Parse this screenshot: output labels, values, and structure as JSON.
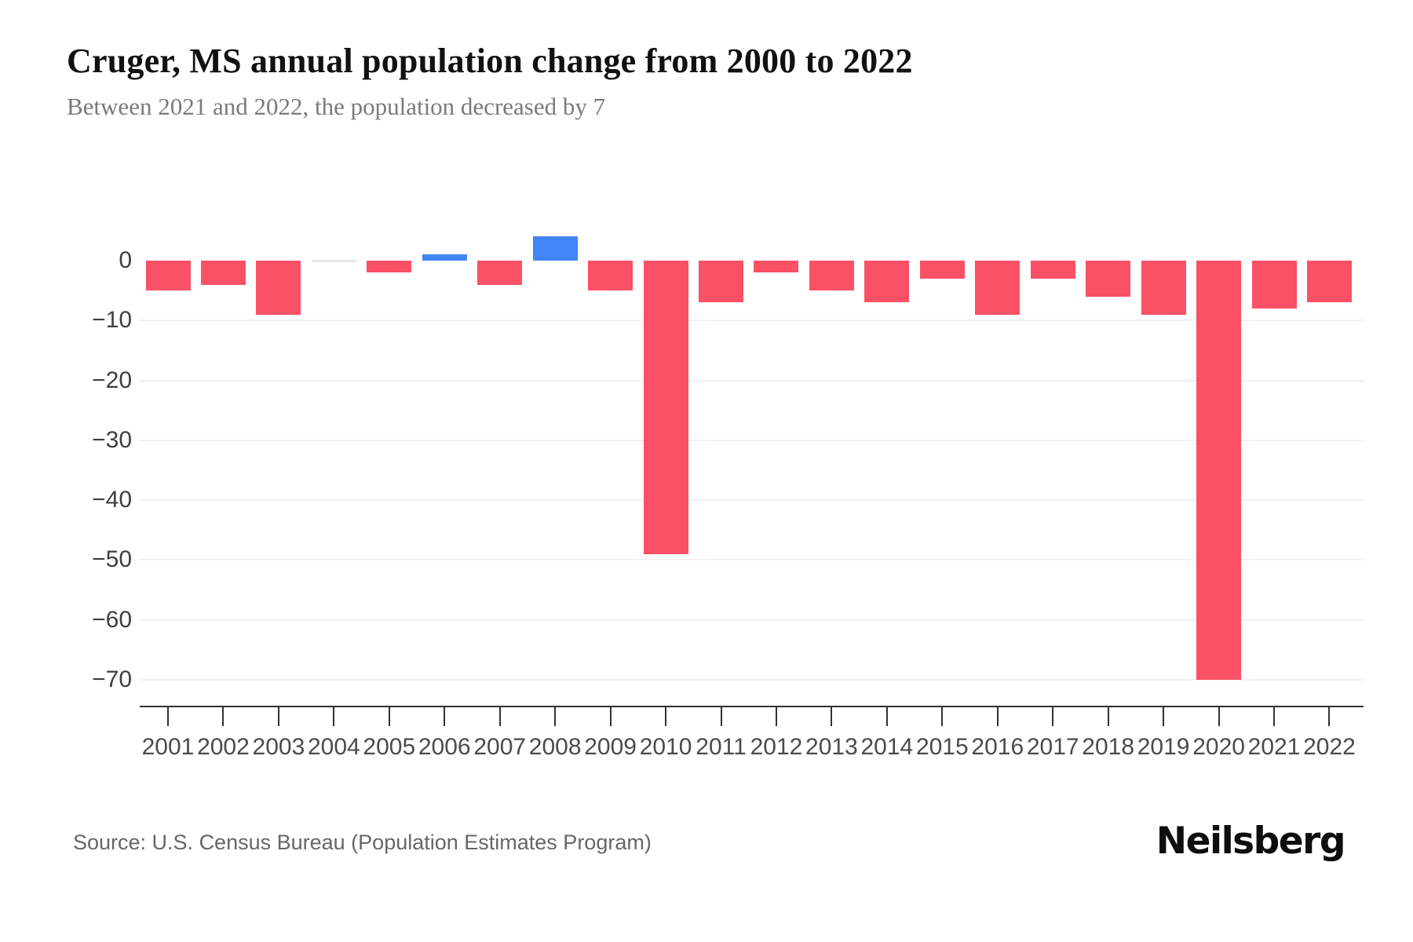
{
  "chart_data": {
    "type": "bar",
    "title": "Cruger, MS annual population change from 2000 to 2022",
    "subtitle": "Between 2021 and 2022, the population decreased by 7",
    "categories": [
      "2001",
      "2002",
      "2003",
      "2004",
      "2005",
      "2006",
      "2007",
      "2008",
      "2009",
      "2010",
      "2011",
      "2012",
      "2013",
      "2014",
      "2015",
      "2016",
      "2017",
      "2018",
      "2019",
      "2020",
      "2021",
      "2022"
    ],
    "values": [
      -5,
      -4,
      -9,
      0,
      -2,
      1,
      -4,
      4,
      -5,
      -49,
      -7,
      -2,
      -5,
      -7,
      -3,
      -9,
      -3,
      -6,
      -9,
      -70,
      -8,
      -7
    ],
    "xlabel": "",
    "ylabel": "",
    "ylim": [
      -74.5,
      10.5
    ],
    "yticks": [
      0,
      -10,
      -20,
      -30,
      -40,
      -50,
      -60,
      -70
    ],
    "ytick_labels": [
      "0",
      "−10",
      "−20",
      "−30",
      "−40",
      "−50",
      "−60",
      "−70"
    ],
    "grid": true,
    "legend": "none",
    "colors": {
      "negative_bar": "#fa5167",
      "positive_bar": "#4285f4",
      "zero_bar": "#e8e8e8",
      "gridline": "#f0f0f0",
      "axis": "#333333"
    }
  },
  "footer": {
    "source": "Source: U.S. Census Bureau (Population Estimates Program)",
    "brand": "Neilsberg"
  }
}
